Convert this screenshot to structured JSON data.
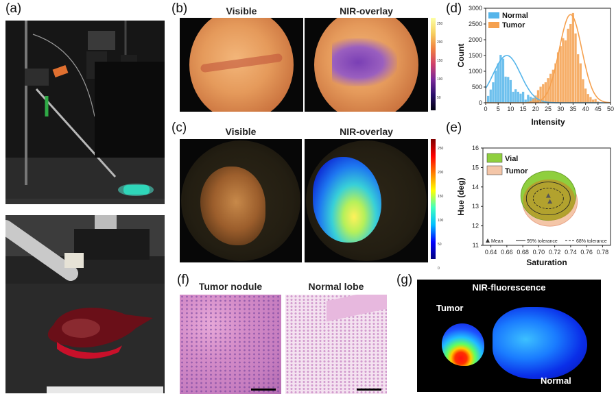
{
  "panels": {
    "a": {
      "label": "(a)"
    },
    "b": {
      "label": "(b)",
      "left_title": "Visible",
      "right_title": "NIR-overlay",
      "colorbar_ticks": [
        "250",
        "200",
        "150",
        "100",
        "50",
        "0"
      ]
    },
    "c": {
      "label": "(c)",
      "left_title": "Visible",
      "right_title": "NIR-overlay",
      "colorbar_ticks": [
        "250",
        "200",
        "150",
        "100",
        "50",
        "0"
      ]
    },
    "d": {
      "label": "(d)"
    },
    "e": {
      "label": "(e)"
    },
    "f": {
      "label": "(f)",
      "left_title": "Tumor nodule",
      "right_title": "Normal lobe"
    },
    "g": {
      "label": "(g)",
      "title": "NIR-fluorescence",
      "tumor_label": "Tumor",
      "normal_label": "Normal"
    }
  },
  "colors": {
    "normal": "#55b5ea",
    "tumor": "#f5a04e",
    "vial": "#8fcf3e",
    "tumor_ellipse": "#f4c6a8"
  },
  "chart_data": [
    {
      "panel": "d",
      "type": "bar",
      "xlabel": "Intensity",
      "ylabel": "Count",
      "xlim": [
        0,
        50
      ],
      "ylim": [
        0,
        3000
      ],
      "xticks": [
        "0",
        "5",
        "10",
        "15",
        "20",
        "25",
        "30",
        "35",
        "40",
        "45",
        "50"
      ],
      "yticks": [
        "0",
        "500",
        "1000",
        "1500",
        "2000",
        "2500",
        "3000"
      ],
      "legend_position": "top-left",
      "series": [
        {
          "name": "Normal",
          "color": "#55b5ea",
          "x": [
            1,
            2,
            3,
            4,
            5,
            6,
            7,
            8,
            9,
            10,
            11,
            12,
            13,
            14,
            15,
            16,
            17,
            18,
            19,
            20,
            21,
            22,
            23,
            24,
            25
          ],
          "values": [
            220,
            420,
            650,
            1020,
            1250,
            1520,
            1400,
            830,
            820,
            720,
            350,
            430,
            350,
            290,
            350,
            100,
            250,
            190,
            160,
            150,
            110,
            90,
            60,
            40,
            20
          ]
        },
        {
          "name": "Tumor",
          "color": "#f5a04e",
          "x": [
            17,
            18,
            19,
            20,
            21,
            22,
            23,
            24,
            25,
            26,
            27,
            28,
            29,
            30,
            31,
            32,
            33,
            34,
            35,
            36,
            37,
            38,
            39,
            40,
            41,
            42,
            43,
            44,
            45
          ],
          "values": [
            30,
            60,
            120,
            230,
            400,
            510,
            590,
            650,
            780,
            920,
            1050,
            1250,
            1600,
            1800,
            2050,
            1980,
            2350,
            2500,
            2850,
            2200,
            1540,
            1250,
            750,
            450,
            280,
            180,
            100,
            120,
            40
          ]
        }
      ],
      "fit_curves": [
        {
          "series": "Normal",
          "mean": 8.5,
          "sd": 5.5,
          "peak": 1500
        },
        {
          "series": "Tumor",
          "mean": 34,
          "sd": 4.5,
          "peak": 2800
        }
      ]
    },
    {
      "panel": "e",
      "type": "scatter",
      "xlabel": "Saturation",
      "ylabel": "Hue (deg)",
      "xlim": [
        0.63,
        0.79
      ],
      "ylim": [
        11,
        16
      ],
      "xticks": [
        "0.64",
        "0.66",
        "0.68",
        "0.70",
        "0.72",
        "0.74",
        "0.76",
        "0.78"
      ],
      "yticks": [
        "11",
        "12",
        "13",
        "14",
        "15",
        "16"
      ],
      "legend_position": "top-left",
      "series": [
        {
          "name": "Vial",
          "color": "#8fcf3e",
          "mean": [
            0.712,
            13.55
          ]
        },
        {
          "name": "Tumor",
          "color": "#f4c6a8",
          "mean": [
            0.714,
            13.25
          ]
        }
      ],
      "footer_legend": [
        "Mean",
        "95% tolerance",
        "68% tolerance"
      ]
    }
  ]
}
